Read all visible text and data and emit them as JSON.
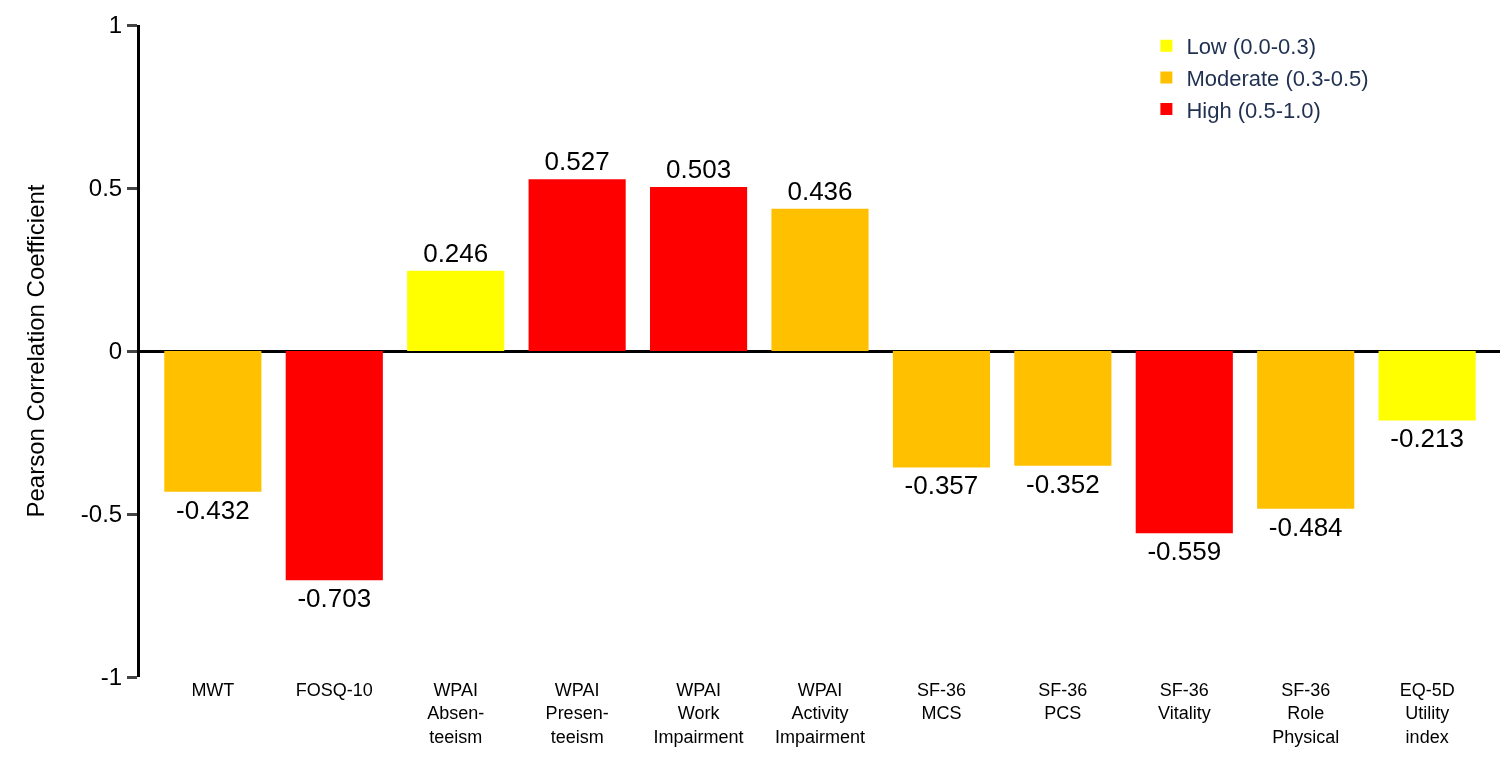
{
  "chart_data": {
    "type": "bar",
    "ylabel": "Pearson Correlation Coefficient",
    "categories": [
      "MWT",
      "FOSQ-10",
      "WPAI\nAbsen-\nteeism",
      "WPAI\nPresen-\nteeism",
      "WPAI\nWork\nImpairment",
      "WPAI\nActivity\nImpairment",
      "SF-36\nMCS",
      "SF-36\nPCS",
      "SF-36\nVitality",
      "SF-36\nRole\nPhysical",
      "EQ-5D\nUtility\nindex"
    ],
    "series": [
      {
        "name": "Low (0.0-0.3)",
        "color": "#ffff00",
        "values": [
          null,
          null,
          0.246,
          null,
          null,
          null,
          null,
          null,
          null,
          null,
          -0.213
        ]
      },
      {
        "name": "Moderate (0.3-0.5)",
        "color": "#ffc000",
        "values": [
          -0.432,
          null,
          null,
          null,
          null,
          0.436,
          -0.357,
          -0.352,
          null,
          -0.484,
          null
        ]
      },
      {
        "name": "High (0.5-1.0)",
        "color": "#ff0000",
        "values": [
          null,
          -0.703,
          null,
          0.527,
          0.503,
          null,
          null,
          null,
          -0.559,
          null,
          null
        ]
      }
    ],
    "ylim": [
      -1,
      1
    ],
    "yticks": [
      -1,
      -0.5,
      0,
      0.5,
      1
    ],
    "data_labels": true,
    "legend": "top right"
  }
}
